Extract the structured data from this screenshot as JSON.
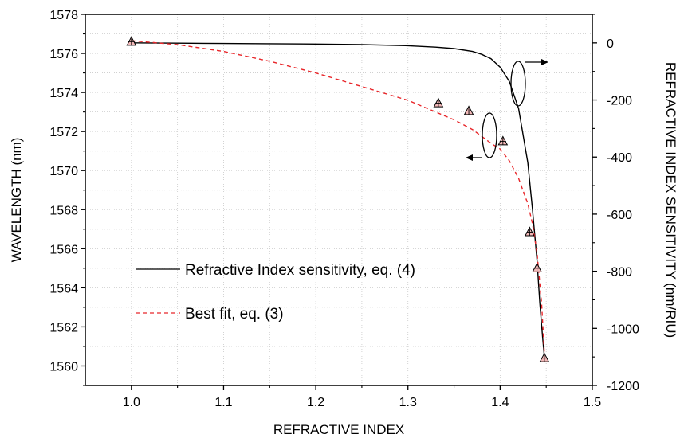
{
  "chart_data": {
    "type": "scatter",
    "title": "",
    "xlabel": "REFRACTIVE INDEX",
    "ylabel": "WAVELENGTH (nm)",
    "y2label": "REFRACTIVE INDEX SENSITIVITY (nm/RIU)",
    "xlim": [
      0.95,
      1.5
    ],
    "ylim": [
      1559,
      1578
    ],
    "y2lim": [
      -1200,
      100
    ],
    "x_ticks": [
      "1.0",
      "1.1",
      "1.2",
      "1.3",
      "1.4",
      "1.5"
    ],
    "y_ticks": [
      "1560",
      "1562",
      "1564",
      "1566",
      "1568",
      "1570",
      "1572",
      "1574",
      "1576",
      "1578"
    ],
    "y2_ticks": [
      "0",
      "-200",
      "-400",
      "-600",
      "-800",
      "-1000",
      "-1200"
    ],
    "grid": true,
    "legend_position": "lower-left",
    "series": [
      {
        "name": "Refractive Index sensitivity, eq. (4)",
        "kind": "line",
        "axis": "right",
        "style": "solid",
        "color": "#000000",
        "x": [
          1.0,
          1.05,
          1.1,
          1.15,
          1.2,
          1.25,
          1.3,
          1.33,
          1.35,
          1.37,
          1.38,
          1.39,
          1.4,
          1.41,
          1.42,
          1.43,
          1.435,
          1.44,
          1.443,
          1.446,
          1.448
        ],
        "values": [
          0,
          -1,
          -2,
          -3,
          -4,
          -6,
          -10,
          -15,
          -20,
          -30,
          -40,
          -55,
          -85,
          -135,
          -230,
          -420,
          -580,
          -760,
          -910,
          -1030,
          -1100
        ]
      },
      {
        "name": "Best fit, eq. (3)",
        "kind": "line",
        "axis": "left",
        "style": "dashed",
        "color": "#e8262a",
        "x": [
          1.0,
          1.05,
          1.1,
          1.15,
          1.2,
          1.25,
          1.3,
          1.33,
          1.35,
          1.37,
          1.39,
          1.4,
          1.41,
          1.42,
          1.43,
          1.435,
          1.44,
          1.445,
          1.448
        ],
        "values": [
          1576.65,
          1576.45,
          1576.1,
          1575.6,
          1575.0,
          1574.3,
          1573.6,
          1573.0,
          1572.6,
          1572.1,
          1571.4,
          1571.1,
          1570.5,
          1569.6,
          1568.3,
          1567.3,
          1565.8,
          1563.2,
          1560.6
        ]
      },
      {
        "name": "",
        "kind": "markers",
        "axis": "left",
        "marker": "triangle",
        "color": "#000000",
        "x": [
          1.0,
          1.333,
          1.366,
          1.403,
          1.432,
          1.44,
          1.448
        ],
        "values": [
          1576.6,
          1573.45,
          1573.05,
          1571.5,
          1566.85,
          1565.0,
          1560.4
        ]
      }
    ]
  }
}
